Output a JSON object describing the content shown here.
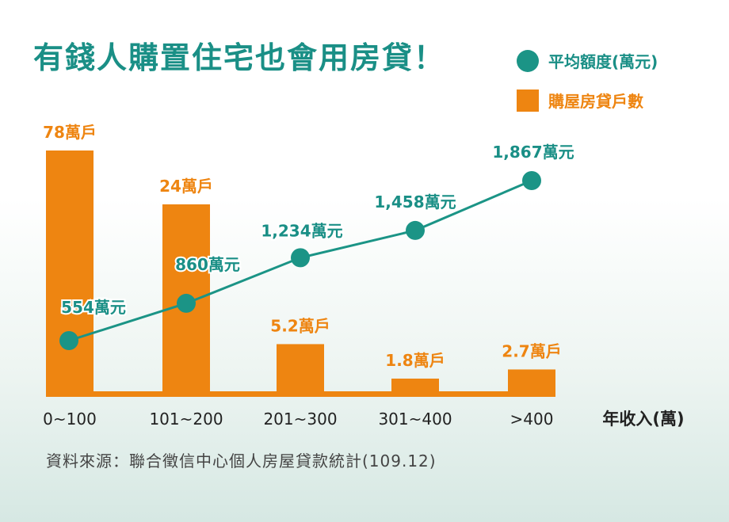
{
  "title": "有錢人購置住宅也會用房貸！",
  "legend": {
    "line_label": "平均額度(萬元)",
    "bar_label": "購屋房貸戶數"
  },
  "source": "資料來源：聯合徵信中心個人房屋貸款統計(109.12)",
  "colors": {
    "title": "#1a8f86",
    "line": "#1b9486",
    "bar": "#ee8511",
    "bar_label": "#ee8511",
    "line_label": "#1a8f86"
  },
  "chart_data": {
    "type": "bar",
    "categories": [
      "0~100",
      "101~200",
      "201~300",
      "301~400",
      ">400"
    ],
    "xlabel": "年收入(萬)",
    "ylabel": "",
    "series": [
      {
        "name": "購屋房貸戶數",
        "type": "bar",
        "values": [
          78,
          24,
          5.2,
          1.8,
          2.7
        ],
        "labels": [
          "78萬戶",
          "24萬戶",
          "5.2萬戶",
          "1.8萬戶",
          "2.7萬戶"
        ]
      },
      {
        "name": "平均額度(萬元)",
        "type": "line",
        "values": [
          554,
          860,
          1234,
          1458,
          1867
        ],
        "labels": [
          "554萬元",
          "860萬元",
          "1,234萬元",
          "1,458萬元",
          "1,867萬元"
        ]
      }
    ]
  }
}
